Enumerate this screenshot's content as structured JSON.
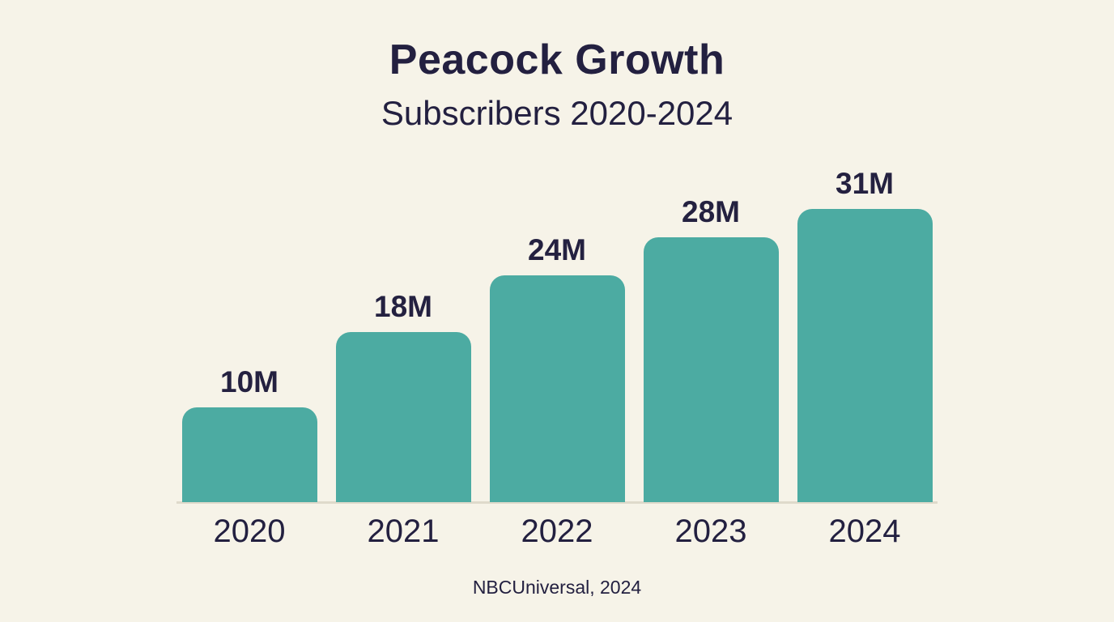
{
  "page": {
    "background_color": "#F6F3E8",
    "text_color": "#232040"
  },
  "header": {
    "title": "Peacock Growth",
    "subtitle": "Subscribers 2020-2024"
  },
  "footer": {
    "source": "NBCUniversal, 2024"
  },
  "chart_data": {
    "type": "bar",
    "title": "Peacock Growth",
    "subtitle": "Subscribers 2020-2024",
    "categories": [
      "2020",
      "2021",
      "2022",
      "2023",
      "2024"
    ],
    "values": [
      10,
      18,
      24,
      28,
      31
    ],
    "value_labels": [
      "10M",
      "18M",
      "24M",
      "28M",
      "31M"
    ],
    "unit": "millions of subscribers",
    "xlabel": "",
    "ylabel": "",
    "ylim": [
      0,
      31
    ],
    "grid": false,
    "legend": false,
    "bar_color": "#4CABA2",
    "label_color": "#232040",
    "source": "NBCUniversal, 2024"
  }
}
